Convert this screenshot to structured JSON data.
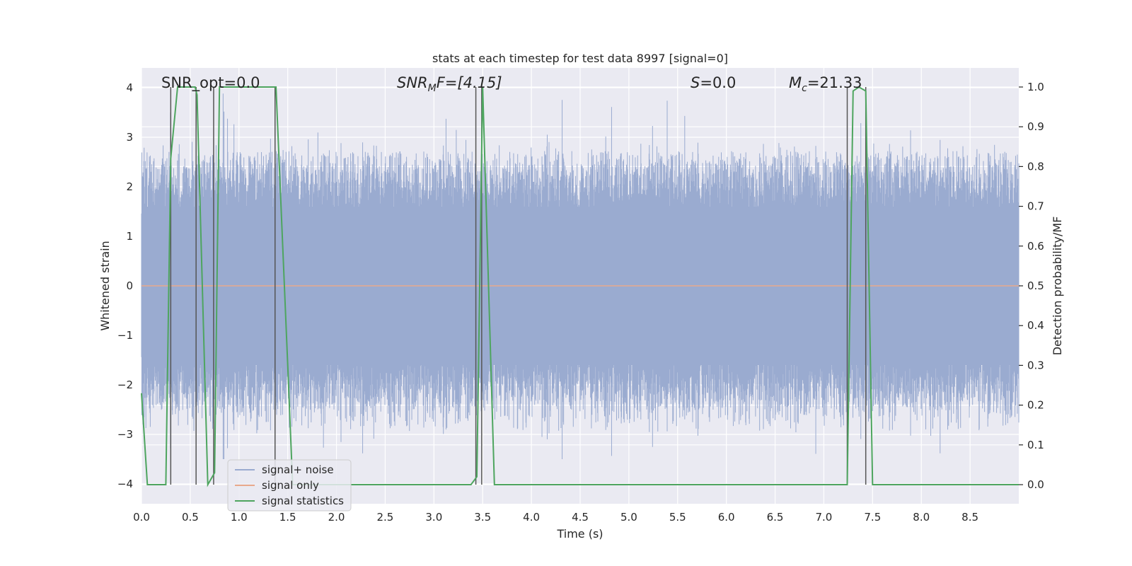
{
  "chart_data": {
    "type": "line",
    "title": "stats at each timestep for test data 8997 [signal=0]",
    "xlabel": "Time (s)",
    "ylabel": "Whitened strain",
    "ylabel_right": "Detection probability/MF",
    "xlim": [
      0.0,
      9.0
    ],
    "ylim": [
      -4.4,
      4.4
    ],
    "ylim_right": [
      -0.048,
      1.048
    ],
    "x_ticks": [
      0.0,
      0.5,
      1.0,
      1.5,
      2.0,
      2.5,
      3.0,
      3.5,
      4.0,
      4.5,
      5.0,
      5.5,
      6.0,
      6.5,
      7.0,
      7.5,
      8.0,
      8.5
    ],
    "x_tick_labels": [
      "0.0",
      "0.5",
      "1.0",
      "1.5",
      "2.0",
      "2.5",
      "3.0",
      "3.5",
      "4.0",
      "4.5",
      "5.0",
      "5.5",
      "6.0",
      "6.5",
      "7.0",
      "7.5",
      "8.0",
      "8.5"
    ],
    "y_ticks": [
      -4,
      -3,
      -2,
      -1,
      0,
      1,
      2,
      3,
      4
    ],
    "y_tick_labels": [
      "−4",
      "−3",
      "−2",
      "−1",
      "0",
      "1",
      "2",
      "3",
      "4"
    ],
    "y_ticks_right": [
      0.0,
      0.1,
      0.2,
      0.3,
      0.4,
      0.5,
      0.6,
      0.7,
      0.8,
      0.9,
      1.0
    ],
    "y_tick_labels_right": [
      "0.0",
      "0.1",
      "0.2",
      "0.3",
      "0.4",
      "0.5",
      "0.6",
      "0.7",
      "0.8",
      "0.9",
      "1.0"
    ],
    "annotations": {
      "snr_opt": "SNR_opt=0.0",
      "snr_mf_base": "SNR",
      "snr_mf_sub": "M",
      "snr_mf_rest": "F=[4.15]",
      "s_base": "S",
      "s_rest": "=0.0",
      "mc_base": "M",
      "mc_sub": "c",
      "mc_rest": "=21.33"
    },
    "series": [
      {
        "name": "signal+ noise",
        "color": "#9aabd0",
        "noise_envelope": {
          "core_amplitude": 1.6,
          "typical_peak": 2.3,
          "max_peak": 3.9,
          "min_trough": -3.5
        }
      },
      {
        "name": "signal only",
        "color": "#e8a98c",
        "x": [
          0.0,
          9.0
        ],
        "y": [
          0.0,
          0.0
        ]
      },
      {
        "name": "signal statistics",
        "color": "#4ea55f",
        "axis": "right",
        "x": [
          0.0,
          0.06,
          0.25,
          0.3,
          0.37,
          0.55,
          0.57,
          0.68,
          0.75,
          0.8,
          1.38,
          1.5,
          1.55,
          3.38,
          3.44,
          3.5,
          3.62,
          7.24,
          7.3,
          7.36,
          7.43,
          7.5,
          7.55,
          9.0
        ],
        "y": [
          0.23,
          0.0,
          0.0,
          0.82,
          1.0,
          1.0,
          0.98,
          0.0,
          0.03,
          1.0,
          1.0,
          0.3,
          0.0,
          0.0,
          0.02,
          1.0,
          0.0,
          0.0,
          0.99,
          1.0,
          0.99,
          0.0,
          0.0,
          0.0
        ]
      }
    ],
    "vertical_markers": [
      0.3,
      0.56,
      0.74,
      1.37,
      3.43,
      3.49,
      7.24,
      7.43
    ],
    "vertical_marker_color": "#555555",
    "legend": {
      "position": "lower-left",
      "entries": [
        "signal+ noise",
        "signal only",
        "signal statistics"
      ]
    }
  }
}
